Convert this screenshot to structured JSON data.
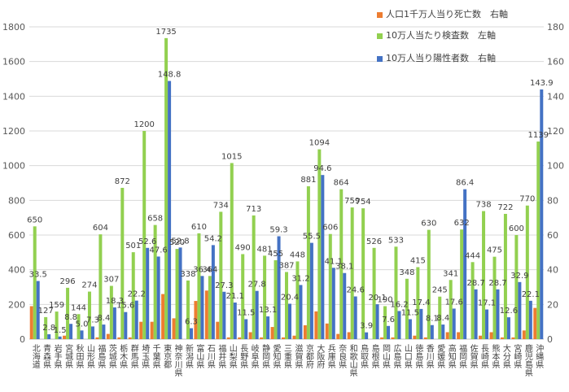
{
  "chart_data": {
    "type": "bar",
    "title": "",
    "categories": [
      "北海道",
      "青森県",
      "岩手県",
      "宮城県",
      "秋田県",
      "山形県",
      "福島県",
      "茨城県",
      "栃木県",
      "群馬県",
      "埼玉県",
      "千葉県",
      "東京都",
      "神奈川県",
      "新潟県",
      "富山県",
      "石川県",
      "福井県",
      "山梨県",
      "長野県",
      "岐阜県",
      "静岡県",
      "愛知県",
      "三重県",
      "滋賀県",
      "京都府",
      "大阪府",
      "兵庫県",
      "奈良県",
      "和歌山県",
      "鳥取県",
      "島根県",
      "岡山県",
      "広島県",
      "山口県",
      "徳島県",
      "香川県",
      "愛媛県",
      "高知県",
      "福岡県",
      "佐賀県",
      "長崎県",
      "熊本県",
      "大分県",
      "宮崎県",
      "鹿児島県",
      "沖縄県"
    ],
    "series": [
      {
        "name": "人口1千万人当り死亡数　右軸",
        "axis": "right",
        "color": "#ED7D31",
        "values": [
          19,
          0,
          0,
          2,
          0,
          0,
          1,
          3,
          1,
          1,
          10,
          10,
          26,
          12,
          0,
          22,
          28,
          10,
          1,
          1,
          4,
          1,
          7,
          1,
          2,
          8,
          16,
          9,
          3,
          4,
          0,
          0,
          1,
          1,
          0,
          2,
          1,
          0,
          4,
          4,
          0,
          2,
          4,
          1,
          1,
          5,
          18
        ]
      },
      {
        "name": "10万人当たり検査数　左軸",
        "axis": "left",
        "color": "#92D050",
        "values": [
          650,
          127,
          159,
          296,
          144,
          274,
          604,
          307,
          872,
          501,
          1200,
          658,
          1735,
          520,
          338,
          610,
          364,
          734,
          1015,
          490,
          713,
          481,
          455,
          387,
          448,
          881,
          1094,
          606,
          864,
          759,
          754,
          526,
          190,
          533,
          348,
          415,
          630,
          245,
          341,
          632,
          444,
          738,
          475,
          722,
          600,
          770,
          1139
        ]
      },
      {
        "name": "10万人当り陽性者数　右軸",
        "axis": "right",
        "color": "#4472C4",
        "values": [
          33.5,
          2.8,
          1.5,
          8.8,
          5.0,
          7.3,
          8.4,
          18.3,
          15.6,
          22.2,
          52.6,
          47.6,
          148.8,
          52.8,
          6.3,
          36.4,
          54.2,
          27.3,
          21.1,
          11.5,
          27.8,
          13.1,
          59.3,
          20.4,
          31.2,
          55.5,
          94.6,
          41.1,
          38.1,
          24.6,
          3.9,
          20.1,
          7.6,
          16.2,
          11.5,
          17.4,
          8.1,
          8.4,
          17.6,
          86.4,
          28.7,
          17.1,
          28.7,
          12.6,
          32.9,
          22.1,
          143.9
        ]
      }
    ],
    "data_labels": {
      "left": [
        "650",
        "127",
        "159",
        "296",
        "144",
        "274",
        "604",
        "307",
        "872",
        "501",
        "1200",
        "658",
        "1735",
        "520",
        "338",
        "610",
        "364",
        "734",
        "1015",
        "490",
        "713",
        "481",
        "455",
        "387",
        "448",
        "881",
        "1094",
        "606",
        "864",
        "759",
        "754",
        "526",
        "190",
        "533",
        "348",
        "415",
        "630",
        "245",
        "341",
        "632",
        "444",
        "738",
        "475",
        "722",
        "600",
        "770",
        "1139"
      ],
      "right": [
        "33.5",
        "2.8",
        "1.5",
        "8.8",
        "5.0",
        "7.3",
        "8.4",
        "18.3",
        "15.6",
        "22.2",
        "52.6",
        "47.6",
        "148.8",
        "52.8",
        "6.3",
        "36.4",
        "54.2",
        "27.3",
        "21.1",
        "11.5",
        "27.8",
        "13.1",
        "59.3",
        "20.4",
        "31.2",
        "55.5",
        "94.6",
        "41.1",
        "38.1",
        "24.6",
        "3.9",
        "20.1",
        "7.6",
        "16.2",
        "11.5",
        "17.4",
        "8.1",
        "8.4",
        "17.6",
        "86.4",
        "28.7",
        "17.1",
        "28.7",
        "12.6",
        "32.9",
        "22.1",
        "143.9"
      ]
    },
    "y_left": {
      "min": 0,
      "max": 1800,
      "ticks": [
        0,
        200,
        400,
        600,
        800,
        1000,
        1200,
        1400,
        1600,
        1800
      ]
    },
    "y_right": {
      "min": 0,
      "max": 180,
      "ticks": [
        0,
        20,
        40,
        60,
        80,
        100,
        120,
        140,
        160,
        180
      ]
    },
    "grid": true,
    "legend_position": "top-right",
    "gridline_color": "#D9D9D9",
    "axis_line_color": "#BFBFBF"
  }
}
